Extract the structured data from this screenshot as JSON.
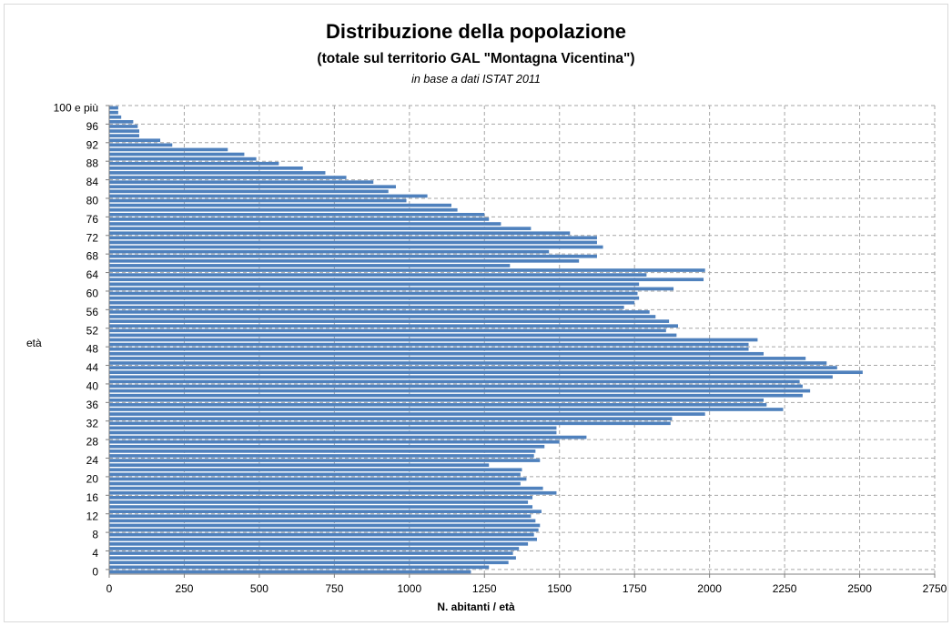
{
  "chart_data": {
    "type": "bar",
    "orientation": "horizontal",
    "title": "Distribuzione della popolazione",
    "subtitle": "(totale sul territorio GAL \"Montagna Vicentina\")",
    "note": "in base a dati ISTAT 2011",
    "xlabel": "N. abitanti / età",
    "ylabel": "età",
    "xlim": [
      0,
      2750
    ],
    "xticks": [
      0,
      250,
      500,
      750,
      1000,
      1250,
      1500,
      1750,
      2000,
      2250,
      2500,
      2750
    ],
    "ytick_labels": [
      "0",
      "4",
      "8",
      "12",
      "16",
      "20",
      "24",
      "28",
      "32",
      "36",
      "40",
      "44",
      "48",
      "52",
      "56",
      "60",
      "64",
      "68",
      "72",
      "76",
      "80",
      "84",
      "88",
      "92",
      "96",
      "100 e più"
    ],
    "ytick_ages": [
      0,
      4,
      8,
      12,
      16,
      20,
      24,
      28,
      32,
      36,
      40,
      44,
      48,
      52,
      56,
      60,
      64,
      68,
      72,
      76,
      80,
      84,
      88,
      92,
      96,
      100
    ],
    "grid": true,
    "bar_color": "#4f81bd",
    "categories": [
      "0",
      "1",
      "2",
      "3",
      "4",
      "5",
      "6",
      "7",
      "8",
      "9",
      "10",
      "11",
      "12",
      "13",
      "14",
      "15",
      "16",
      "17",
      "18",
      "19",
      "20",
      "21",
      "22",
      "23",
      "24",
      "25",
      "26",
      "27",
      "28",
      "29",
      "30",
      "31",
      "32",
      "33",
      "34",
      "35",
      "36",
      "37",
      "38",
      "39",
      "40",
      "41",
      "42",
      "43",
      "44",
      "45",
      "46",
      "47",
      "48",
      "49",
      "50",
      "51",
      "52",
      "53",
      "54",
      "55",
      "56",
      "57",
      "58",
      "59",
      "60",
      "61",
      "62",
      "63",
      "64",
      "65",
      "66",
      "67",
      "68",
      "69",
      "70",
      "71",
      "72",
      "73",
      "74",
      "75",
      "76",
      "77",
      "78",
      "79",
      "80",
      "81",
      "82",
      "83",
      "84",
      "85",
      "86",
      "87",
      "88",
      "89",
      "90",
      "91",
      "92",
      "93",
      "94",
      "95",
      "96",
      "97",
      "98",
      "99",
      "100 e più"
    ],
    "values": [
      1205,
      1265,
      1330,
      1355,
      1345,
      1365,
      1395,
      1425,
      1415,
      1430,
      1435,
      1420,
      1405,
      1440,
      1410,
      1395,
      1410,
      1490,
      1445,
      1370,
      1390,
      1370,
      1375,
      1265,
      1435,
      1415,
      1420,
      1450,
      1500,
      1590,
      1490,
      1490,
      1870,
      1875,
      1985,
      2245,
      2190,
      2180,
      2310,
      2335,
      2310,
      2300,
      2410,
      2510,
      2425,
      2390,
      2320,
      2180,
      2130,
      2130,
      2160,
      1890,
      1855,
      1895,
      1865,
      1820,
      1800,
      1715,
      1750,
      1765,
      1760,
      1880,
      1765,
      1980,
      1790,
      1985,
      1335,
      1565,
      1625,
      1465,
      1645,
      1625,
      1625,
      1535,
      1405,
      1305,
      1265,
      1250,
      1160,
      1140,
      990,
      1060,
      930,
      955,
      880,
      790,
      720,
      645,
      565,
      490,
      450,
      395,
      210,
      170,
      100,
      100,
      95,
      80,
      40,
      30,
      30
    ]
  }
}
